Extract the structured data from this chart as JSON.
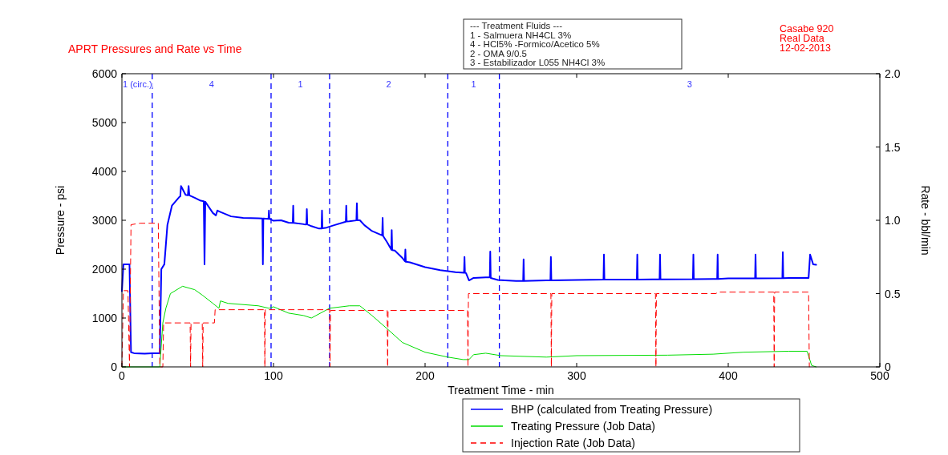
{
  "chart_data": {
    "type": "line",
    "title": "APRT Pressures and Rate vs Time",
    "xlabel": "Treatment Time - min",
    "ylabel": "Pressure - psi",
    "y2label": "Rate - bbl/min",
    "xlim": [
      0,
      500
    ],
    "xticks": [
      0,
      100,
      200,
      300,
      400,
      500
    ],
    "ylim": [
      0,
      6000
    ],
    "yticks": [
      0,
      1000,
      2000,
      3000,
      4000,
      5000,
      6000
    ],
    "y2lim": [
      0,
      2
    ],
    "y2ticks": [
      0,
      0.5,
      {
        "value": 1,
        "label": "1.0"
      },
      1.5,
      {
        "value": 2,
        "label": "2.0"
      }
    ],
    "grid": false,
    "legend": "bottom right",
    "marker": "none",
    "series": [
      {
        "name": "BHP (calculated from Treating Pressure)",
        "color": "#0000ff",
        "line_style": "solid",
        "x": [
          0,
          1,
          5,
          6,
          8,
          15,
          20,
          25,
          26,
          28,
          30,
          33,
          38,
          38.5,
          39,
          42,
          43.5,
          44,
          44.5,
          48,
          52,
          54,
          54.5,
          55,
          60,
          62,
          63,
          65,
          72,
          80,
          90,
          92.7,
          93,
          93.3,
          96.7,
          97,
          97.3,
          100,
          105,
          110,
          112.7,
          113,
          113.3,
          120,
          121.7,
          122,
          122.3,
          125,
          130,
          131.7,
          132,
          132.3,
          135,
          140,
          147.7,
          148,
          148.3,
          150,
          154.7,
          155,
          155.3,
          157,
          160,
          165,
          171.7,
          172,
          172.3,
          175,
          177.7,
          178,
          178.3,
          180,
          185,
          186.7,
          187,
          187.3,
          190,
          200,
          210,
          220,
          225.7,
          226,
          226.3,
          227,
          229,
          232,
          240,
          242.7,
          243,
          243.3,
          248,
          260,
          264.7,
          265,
          265.3,
          280,
          282.7,
          283,
          283.3,
          300,
          317.7,
          318,
          318.3,
          339.7,
          340,
          340.3,
          350,
          354.7,
          355,
          355.3,
          376.7,
          377,
          377.3,
          390,
          392.7,
          393,
          393.3,
          400,
          417.7,
          418,
          418.3,
          435.7,
          436,
          436.3,
          440,
          453,
          454,
          456,
          458
        ],
        "values": [
          1550,
          2100,
          2100,
          300,
          280,
          270,
          280,
          280,
          2000,
          2100,
          2900,
          3300,
          3480,
          3490,
          3700,
          3520,
          3510,
          3700,
          3510,
          3460,
          3400,
          3390,
          2100,
          3380,
          3150,
          3100,
          3200,
          3170,
          3080,
          3050,
          3040,
          3035,
          2100,
          3035,
          3030,
          3200,
          3030,
          2990,
          3000,
          2950,
          2945,
          3300,
          2945,
          2920,
          2915,
          3230,
          2915,
          2880,
          2830,
          2830,
          3200,
          2835,
          2850,
          2900,
          2970,
          3300,
          2975,
          2980,
          2998,
          3350,
          2998,
          3000,
          2900,
          2780,
          2690,
          3050,
          2680,
          2550,
          2400,
          2800,
          2390,
          2380,
          2230,
          2160,
          2400,
          2150,
          2140,
          2040,
          1980,
          1940,
          1925,
          2250,
          1925,
          1920,
          1770,
          1820,
          1830,
          1830,
          2360,
          1820,
          1780,
          1760,
          1760,
          2200,
          1760,
          1770,
          1770,
          2250,
          1770,
          1780,
          1785,
          2300,
          1785,
          1788,
          2300,
          1788,
          1790,
          1790,
          2300,
          1790,
          1795,
          2300,
          1795,
          1800,
          1800,
          2300,
          1800,
          1810,
          1812,
          2300,
          1812,
          1815,
          2350,
          1815,
          1820,
          1820,
          2300,
          2100,
          2090
        ]
      },
      {
        "name": "Treating Pressure (Job Data)",
        "color": "#00dd00",
        "line_style": "solid",
        "x": [
          0,
          25,
          27,
          29,
          32,
          40,
          48,
          53,
          60,
          64,
          65,
          70,
          90,
          97,
          100,
          110,
          120,
          125,
          137,
          150,
          157,
          165,
          175,
          185,
          200,
          215,
          225,
          229,
          232,
          240,
          250,
          280,
          300,
          360,
          390,
          410,
          440,
          452,
          455,
          458
        ],
        "values": [
          0,
          0,
          900,
          1200,
          1500,
          1650,
          1580,
          1470,
          1300,
          1200,
          1350,
          1300,
          1250,
          1200,
          1230,
          1100,
          1050,
          1000,
          1200,
          1250,
          1250,
          1050,
          780,
          500,
          300,
          200,
          150,
          150,
          250,
          280,
          230,
          200,
          230,
          240,
          260,
          300,
          320,
          320,
          30,
          0
        ]
      },
      {
        "name": "Injection Rate (Job Data)",
        "color": "#ff0000",
        "line_style": "dashed",
        "axis": "y2",
        "x": [
          0,
          1,
          4,
          5,
          6,
          12,
          24,
          25,
          27,
          27.5,
          45,
          45.3,
          45.6,
          53,
          53.3,
          53.6,
          61,
          61.5,
          94,
          94.3,
          94.6,
          137,
          137.3,
          137.6,
          175,
          175.3,
          175.6,
          228,
          228.3,
          228.6,
          283,
          283.3,
          283.6,
          352,
          352.3,
          352.6,
          392,
          393,
          430,
          430.3,
          430.6,
          453,
          453.5
        ],
        "values": [
          0,
          0.52,
          0.52,
          0,
          0.97,
          0.98,
          0.98,
          0,
          0,
          0.3,
          0.3,
          0,
          0.3,
          0.3,
          0,
          0.3,
          0.3,
          0.39,
          0.39,
          0,
          0.39,
          0.39,
          0,
          0.385,
          0.385,
          0,
          0.385,
          0.385,
          0,
          0.5,
          0.5,
          0,
          0.5,
          0.5,
          0,
          0.5,
          0.5,
          0.51,
          0.51,
          0,
          0.51,
          0.51,
          0
        ]
      }
    ],
    "ref_lines": [
      {
        "axis": "x",
        "value": 20,
        "color": "#0000ff",
        "line_style": "dashed"
      },
      {
        "axis": "x",
        "value": 98.4,
        "color": "#0000ff",
        "line_style": "dashed"
      },
      {
        "axis": "x",
        "value": 137,
        "color": "#0000ff",
        "line_style": "dashed"
      },
      {
        "axis": "x",
        "value": 215,
        "color": "#0000ff",
        "line_style": "dashed"
      },
      {
        "axis": "x",
        "value": 249,
        "color": "#0000ff",
        "line_style": "dashed"
      }
    ],
    "annotations": [
      "1 (circ.)",
      "4",
      "1",
      "2",
      "1",
      "3",
      "--- Treatment Fluids ---",
      "1 - Salmuera NH4CL 3%",
      "4 - HCl5% -Formico/Acetico 5%",
      "2 - OMA 9/0.5",
      "3 - Estabilizador L055 NH4Cl 3%",
      "Casabe 920",
      "Real Data",
      "12-02-2013"
    ]
  }
}
